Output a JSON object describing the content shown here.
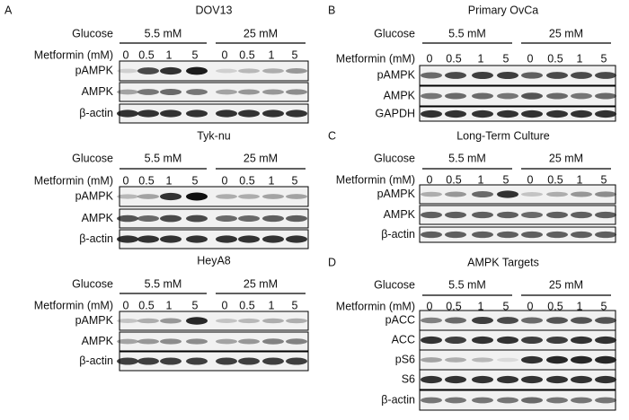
{
  "panels": [
    {
      "letter": "A",
      "title": "DOV13",
      "glucose_label": "Glucose",
      "glucose_groups": [
        "5.5 mM",
        "25 mM"
      ],
      "metformin_label": "Metformin (mM)",
      "doses": [
        "0",
        "0.5",
        "1",
        "5",
        "0",
        "0.5",
        "1",
        "5"
      ],
      "rows": [
        "pAMPK",
        "AMPK",
        "β-actin"
      ]
    },
    {
      "title": "Tyk-nu",
      "glucose_label": "Glucose",
      "glucose_groups": [
        "5.5 mM",
        "25 mM"
      ],
      "metformin_label": "Metformin (mM)",
      "doses": [
        "0",
        "0.5",
        "1",
        "5",
        "0",
        "0.5",
        "1",
        "5"
      ],
      "rows": [
        "pAMPK",
        "AMPK",
        "β-actin"
      ]
    },
    {
      "title": "HeyA8",
      "glucose_label": "Glucose",
      "glucose_groups": [
        "5.5 mM",
        "25 mM"
      ],
      "metformin_label": "Metformin (mM)",
      "doses": [
        "0",
        "0.5",
        "1",
        "5",
        "0",
        "0.5",
        "1",
        "5"
      ],
      "rows": [
        "pAMPK",
        "AMPK",
        "β-actin"
      ]
    },
    {
      "letter": "B",
      "title": "Primary OvCa",
      "glucose_label": "Glucose",
      "glucose_groups": [
        "5.5 mM",
        "25 mM"
      ],
      "metformin_label": "Metformin (mM)",
      "doses": [
        "0",
        "0.5",
        "1",
        "5",
        "0",
        "0.5",
        "1",
        "5"
      ],
      "rows": [
        "pAMPK",
        "AMPK",
        "GAPDH"
      ]
    },
    {
      "letter": "C",
      "title": "Long-Term Culture",
      "glucose_label": "Glucose",
      "glucose_groups": [
        "5.5 mM",
        "25 mM"
      ],
      "metformin_label": "Metformin (mM)",
      "doses": [
        "0",
        "0.5",
        "1",
        "5",
        "0",
        "0.5",
        "1",
        "5"
      ],
      "rows": [
        "pAMPK",
        "AMPK",
        "β-actin"
      ]
    },
    {
      "letter": "D",
      "title": "AMPK Targets",
      "glucose_label": "Glucose",
      "glucose_groups": [
        "5.5 mM",
        "25 mM"
      ],
      "metformin_label": "Metformin (mM)",
      "doses": [
        "0",
        "0.5",
        "1",
        "5",
        "0",
        "0.5",
        "1",
        "5"
      ],
      "rows": [
        "pACC",
        "ACC",
        "pS6",
        "S6",
        "β-actin"
      ]
    }
  ]
}
